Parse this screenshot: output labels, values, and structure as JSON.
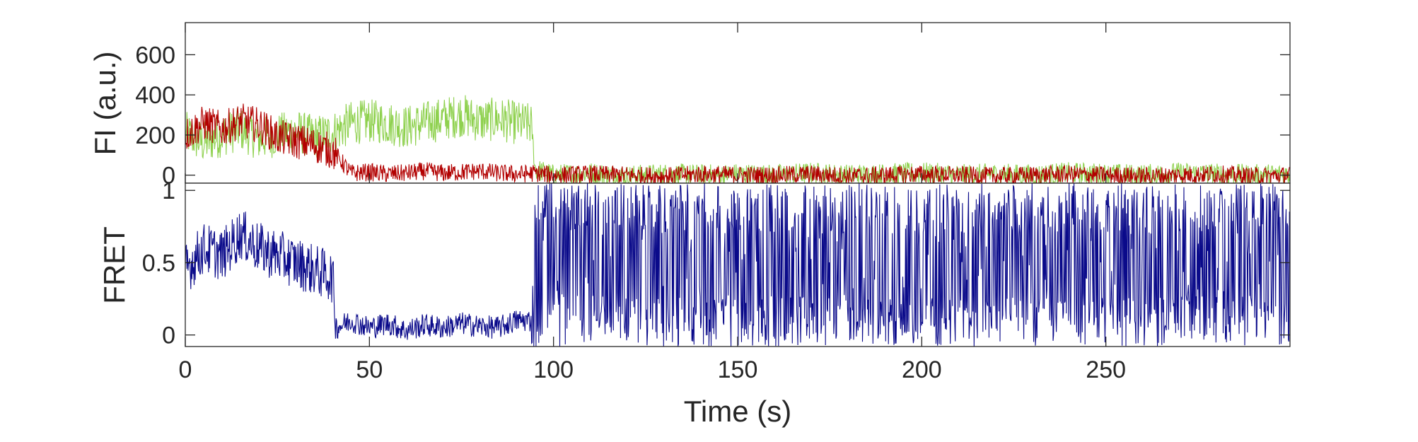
{
  "chart_data": [
    {
      "panel": "fluorescence",
      "type": "line",
      "title": "",
      "xlabel": "",
      "ylabel": "FI (a.u.)",
      "xlim": [
        0,
        300
      ],
      "ylim": [
        -40,
        760
      ],
      "yticks": [
        0,
        200,
        400,
        600
      ],
      "xticks": [
        0,
        50,
        100,
        150,
        200,
        250
      ],
      "grid": false,
      "series": [
        {
          "color": "#8fd14f",
          "x": [
            0,
            5,
            10,
            15,
            20,
            25,
            30,
            35,
            40,
            45,
            50,
            55,
            60,
            65,
            70,
            75,
            80,
            85,
            90,
            94,
            95,
            100,
            110,
            120,
            130,
            140,
            150,
            160,
            170,
            180,
            190,
            200,
            210,
            220,
            230,
            240,
            250,
            260,
            270,
            280,
            290,
            300
          ],
          "y": [
            210,
            160,
            200,
            230,
            180,
            200,
            220,
            190,
            210,
            260,
            270,
            260,
            240,
            260,
            280,
            300,
            270,
            280,
            260,
            250,
            30,
            0,
            10,
            -5,
            5,
            0,
            5,
            0,
            10,
            0,
            5,
            10,
            0,
            5,
            0,
            10,
            5,
            0,
            10,
            5,
            0,
            5
          ]
        },
        {
          "color": "#b20000",
          "x": [
            0,
            5,
            10,
            15,
            20,
            25,
            30,
            35,
            40,
            45,
            50,
            55,
            60,
            65,
            70,
            75,
            80,
            85,
            90,
            95,
            100,
            110,
            120,
            130,
            140,
            150,
            160,
            170,
            180,
            190,
            200,
            210,
            220,
            230,
            240,
            250,
            260,
            270,
            280,
            290,
            300
          ],
          "y": [
            200,
            260,
            230,
            270,
            250,
            190,
            170,
            150,
            120,
            10,
            15,
            5,
            10,
            20,
            10,
            15,
            20,
            10,
            5,
            10,
            0,
            5,
            0,
            -5,
            5,
            0,
            0,
            5,
            -5,
            0,
            5,
            0,
            -5,
            0,
            5,
            0,
            -5,
            0,
            5,
            -5,
            0
          ]
        }
      ]
    },
    {
      "panel": "fret",
      "type": "line",
      "title": "",
      "xlabel": "Time (s)",
      "ylabel": "FRET",
      "xlim": [
        0,
        300
      ],
      "ylim": [
        -0.08,
        1.05
      ],
      "yticks": [
        0,
        0.5,
        1
      ],
      "xticks": [
        0,
        50,
        100,
        150,
        200,
        250
      ],
      "xtick_labels": [
        "0",
        "50",
        "100",
        "150",
        "200",
        "250"
      ],
      "ytick_labels": [
        "0",
        "0.5",
        "1"
      ],
      "grid": false,
      "series": [
        {
          "color": "#0a0a8a",
          "x": [
            0,
            5,
            10,
            15,
            20,
            25,
            30,
            35,
            40,
            41,
            45,
            50,
            55,
            60,
            65,
            70,
            75,
            80,
            85,
            90,
            94,
            95,
            100,
            150,
            200,
            250,
            300
          ],
          "y": [
            0.45,
            0.6,
            0.55,
            0.7,
            0.6,
            0.55,
            0.5,
            0.45,
            0.4,
            0.05,
            0.1,
            0.05,
            0.08,
            0.03,
            0.07,
            0.05,
            0.08,
            0.06,
            0.05,
            0.1,
            0.1,
            0.5,
            0.5,
            0.5,
            0.5,
            0.5,
            0.5
          ]
        }
      ]
    }
  ],
  "colors": {
    "axes": "#262626",
    "green_trace": "#8fd14f",
    "red_trace": "#b20000",
    "fret_trace": "#0a0a8a"
  }
}
